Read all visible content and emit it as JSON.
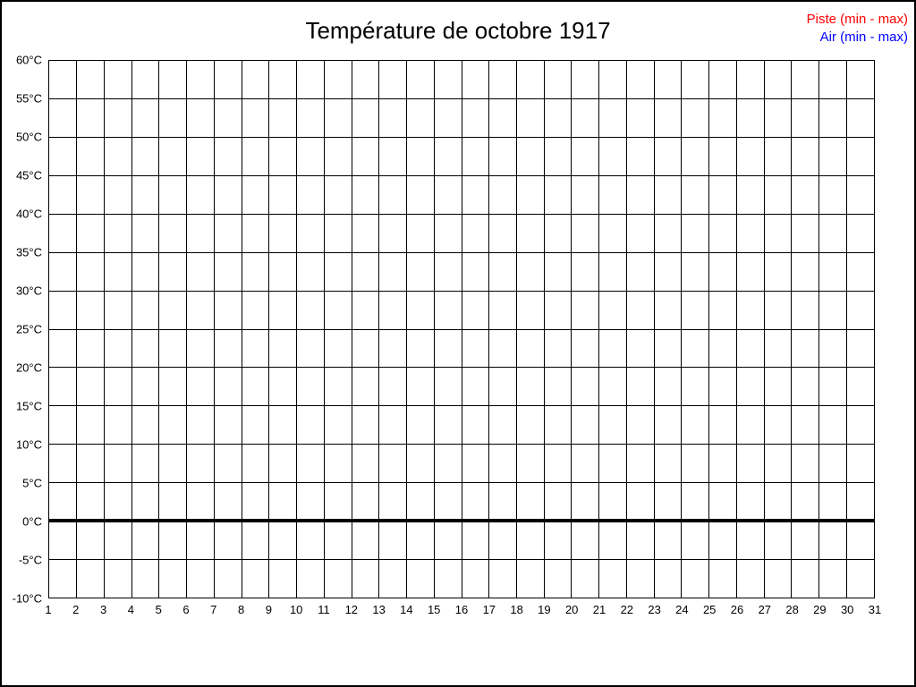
{
  "chart_data": {
    "type": "line",
    "title": "Température de octobre 1917",
    "xlabel": "",
    "ylabel": "",
    "xlim": [
      1,
      31
    ],
    "ylim": [
      -10,
      60
    ],
    "x_ticks": [
      1,
      2,
      3,
      4,
      5,
      6,
      7,
      8,
      9,
      10,
      11,
      12,
      13,
      14,
      15,
      16,
      17,
      18,
      19,
      20,
      21,
      22,
      23,
      24,
      25,
      26,
      27,
      28,
      29,
      30,
      31
    ],
    "y_tick_values": [
      60,
      55,
      50,
      45,
      40,
      35,
      30,
      25,
      20,
      15,
      10,
      5,
      0,
      -5,
      -10
    ],
    "y_tick_labels": [
      "60°C",
      "55°C",
      "50°C",
      "45°C",
      "40°C",
      "35°C",
      "30°C",
      "25°C",
      "20°C",
      "15°C",
      "10°C",
      "5°C",
      "0°C",
      "-5°C",
      "-10°C"
    ],
    "grid": true,
    "legend_position": "top-right",
    "zero_line_value": 0,
    "series": [
      {
        "name": "Piste (min - max)",
        "color": "#ff0000",
        "x": [],
        "y_min": [],
        "y_max": []
      },
      {
        "name": "Air (min - max)",
        "color": "#0000ff",
        "x": [],
        "y_min": [],
        "y_max": []
      }
    ]
  },
  "colors": {
    "frame_border": "#000000",
    "grid": "#000000",
    "text": "#000000",
    "background": "#ffffff"
  }
}
